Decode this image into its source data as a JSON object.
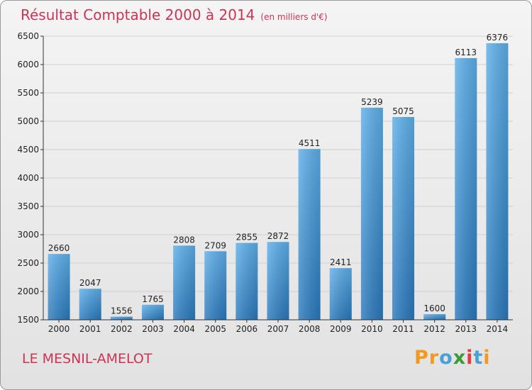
{
  "chart_data": {
    "type": "bar",
    "title": "Résultat Comptable 2000 à 2014",
    "subtitle": "(en milliers d'€)",
    "categories": [
      "2000",
      "2001",
      "2002",
      "2003",
      "2004",
      "2005",
      "2006",
      "2007",
      "2008",
      "2009",
      "2010",
      "2011",
      "2012",
      "2013",
      "2014"
    ],
    "values": [
      2660,
      2047,
      1556,
      1765,
      2808,
      2709,
      2855,
      2872,
      4511,
      2411,
      5239,
      5075,
      1600,
      6113,
      6376
    ],
    "ylim": [
      1500,
      6500
    ],
    "yticks": [
      1500,
      2000,
      2500,
      3000,
      3500,
      4000,
      4500,
      5000,
      5500,
      6000,
      6500
    ],
    "grid": true,
    "bar_color": "#3b8fd6",
    "xlabel": "",
    "ylabel": ""
  },
  "footer": {
    "commune": "LE MESNIL-AMELOT",
    "brand_letters": [
      {
        "ch": "P",
        "color": "#f29a1d"
      },
      {
        "ch": "r",
        "color": "#f29a1d"
      },
      {
        "ch": "o",
        "color": "#4aa0d8"
      },
      {
        "ch": "x",
        "color": "#3a9a35"
      },
      {
        "ch": "i",
        "color": "#e23c3c"
      },
      {
        "ch": "t",
        "color": "#4aa0d8"
      },
      {
        "ch": "i",
        "color": "#f29a1d"
      }
    ]
  },
  "colors": {
    "accent": "#cc3355",
    "axis": "#333333",
    "grid": "#d0d0d0"
  }
}
